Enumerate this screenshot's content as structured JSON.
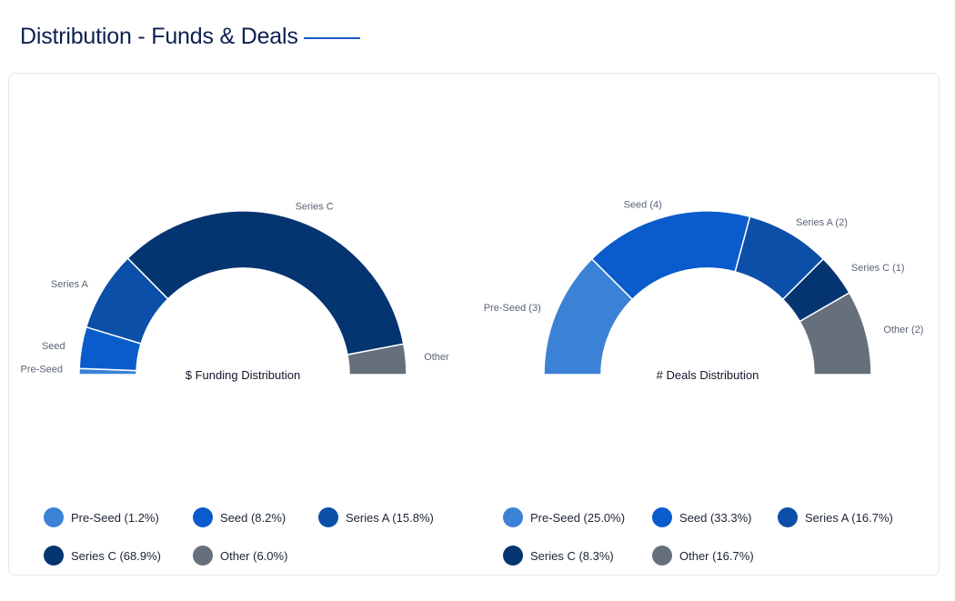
{
  "header": {
    "title": "Distribution - Funds & Deals"
  },
  "colors": {
    "pre_seed": "#3b82d6",
    "seed": "#0a5ccc",
    "series_a": "#0b4fa8",
    "series_c": "#043570",
    "other": "#66707c"
  },
  "chart_data": [
    {
      "type": "pie",
      "subtype": "half-donut",
      "center_label": "$ Funding Distribution",
      "slices": [
        {
          "label": "Pre-Seed",
          "value": 1.2,
          "color": "#3b82d6"
        },
        {
          "label": "Seed",
          "value": 8.2,
          "color": "#0a5ccc"
        },
        {
          "label": "Series A",
          "value": 15.8,
          "color": "#0b4fa8"
        },
        {
          "label": "Series C",
          "value": 68.9,
          "color": "#043570"
        },
        {
          "label": "Other",
          "value": 6.0,
          "color": "#66707c"
        }
      ],
      "slice_labels": [
        "Pre-Seed",
        "Seed",
        "Series A",
        "Series C",
        "Other"
      ],
      "legend": [
        "Pre-Seed (1.2%)",
        "Seed (8.2%)",
        "Series A (15.8%)",
        "Series C (68.9%)",
        "Other (6.0%)"
      ]
    },
    {
      "type": "pie",
      "subtype": "half-donut",
      "center_label": "# Deals Distribution",
      "slices": [
        {
          "label": "Pre-Seed",
          "value": 3,
          "color": "#3b82d6"
        },
        {
          "label": "Seed",
          "value": 4,
          "color": "#0a5ccc"
        },
        {
          "label": "Series A",
          "value": 2,
          "color": "#0b4fa8"
        },
        {
          "label": "Series C",
          "value": 1,
          "color": "#043570"
        },
        {
          "label": "Other",
          "value": 2,
          "color": "#66707c"
        }
      ],
      "slice_labels": [
        "Pre-Seed (3)",
        "Seed (4)",
        "Series A (2)",
        "Series C (1)",
        "Other (2)"
      ],
      "legend": [
        "Pre-Seed (25.0%)",
        "Seed (33.3%)",
        "Series A (16.7%)",
        "Series C (8.3%)",
        "Other (16.7%)"
      ]
    }
  ]
}
